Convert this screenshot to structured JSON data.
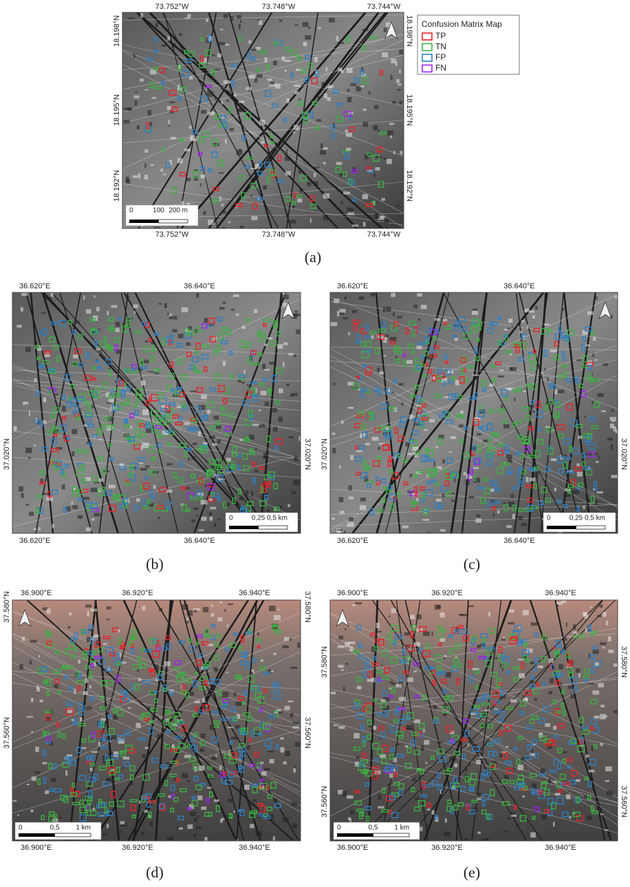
{
  "legend": {
    "title": "Confusion Matrix Map",
    "items": [
      {
        "label": "TP",
        "color": "#e8232a"
      },
      {
        "label": "TN",
        "color": "#3cb043"
      },
      {
        "label": "FP",
        "color": "#2f7fc1"
      },
      {
        "label": "FN",
        "color": "#a020f0"
      }
    ]
  },
  "panels": [
    {
      "caption": "(a)",
      "top_labels": [
        "73.752°W",
        "73.748°W",
        "73.744°W"
      ],
      "bottom_labels": [
        "73.752°W",
        "73.748°W",
        "73.744°W"
      ],
      "left_labels": [
        "18.198°N",
        "18.195°N",
        "18.192°N"
      ],
      "right_labels": [
        "18.198°N",
        "18.195°N",
        "18.192°N"
      ],
      "scale_labels": [
        "0",
        "100",
        "200 m"
      ]
    },
    {
      "caption": "(b)",
      "top_labels": [
        "36.620°E",
        "36.640°E"
      ],
      "bottom_labels": [
        "36.620°E",
        "36.640°E"
      ],
      "left_labels": [
        "37.020°N"
      ],
      "right_labels": [
        "37.020°N"
      ],
      "scale_labels": [
        "0",
        "0,25",
        "0,5 km"
      ]
    },
    {
      "caption": "(c)",
      "top_labels": [
        "36.620°E",
        "36.640°E"
      ],
      "bottom_labels": [
        "36.620°E",
        "36.640°E"
      ],
      "left_labels": [
        "37.020°N"
      ],
      "right_labels": [
        "37.020°N"
      ],
      "scale_labels": [
        "0",
        "0,25",
        "0,5 km"
      ]
    },
    {
      "caption": "(d)",
      "top_labels": [
        "36.900°E",
        "36.920°E",
        "36.940°E"
      ],
      "bottom_labels": [
        "36.900°E",
        "36.920°E",
        "36.940°E"
      ],
      "left_labels": [
        "37.580°N",
        "37.560°N"
      ],
      "right_labels": [
        "37.580°N",
        "37.560°N"
      ],
      "scale_labels": [
        "0",
        "0,5",
        "1 km"
      ]
    },
    {
      "caption": "(e)",
      "top_labels": [
        "36.900°E",
        "36.920°E",
        "36.940°E"
      ],
      "bottom_labels": [
        "36.900°E",
        "36.920°E",
        "36.940°E"
      ],
      "left_labels": [
        "37.580°N",
        "37.560°N"
      ],
      "right_labels": [
        "37.580°N",
        "37.560°N"
      ],
      "scale_labels": [
        "0",
        "0,5",
        "1 km"
      ]
    }
  ]
}
